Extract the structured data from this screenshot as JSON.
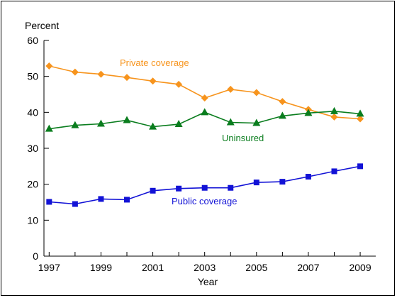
{
  "chart_data": {
    "type": "line",
    "ylabel": "Percent",
    "xlabel": "Year",
    "ylim": [
      0,
      60
    ],
    "yticks": [
      0,
      10,
      20,
      30,
      40,
      50,
      60
    ],
    "xlim": [
      1996.8,
      2009.6
    ],
    "xticks": [
      1997,
      1999,
      2001,
      2003,
      2005,
      2007,
      2009
    ],
    "grid": false,
    "x": [
      1997,
      1998,
      1999,
      2000,
      2001,
      2002,
      2003,
      2004,
      2005,
      2006,
      2007,
      2008,
      2009
    ],
    "series": [
      {
        "name": "Private coverage",
        "color": "#f7941d",
        "marker": "diamond",
        "values": [
          52.9,
          51.2,
          50.6,
          49.7,
          48.7,
          47.8,
          44.0,
          46.4,
          45.5,
          43.0,
          40.8,
          38.7,
          38.2
        ]
      },
      {
        "name": "Uninsured",
        "color": "#0a7d1e",
        "marker": "triangle",
        "values": [
          35.4,
          36.4,
          36.8,
          37.8,
          36.0,
          36.7,
          40.0,
          37.2,
          37.0,
          39.0,
          39.8,
          40.3,
          39.6
        ]
      },
      {
        "name": "Public coverage",
        "color": "#1212d6",
        "marker": "square",
        "values": [
          15.1,
          14.5,
          15.9,
          15.7,
          18.2,
          18.8,
          19.0,
          19.0,
          20.5,
          20.7,
          22.1,
          23.6,
          25.0
        ]
      }
    ]
  }
}
